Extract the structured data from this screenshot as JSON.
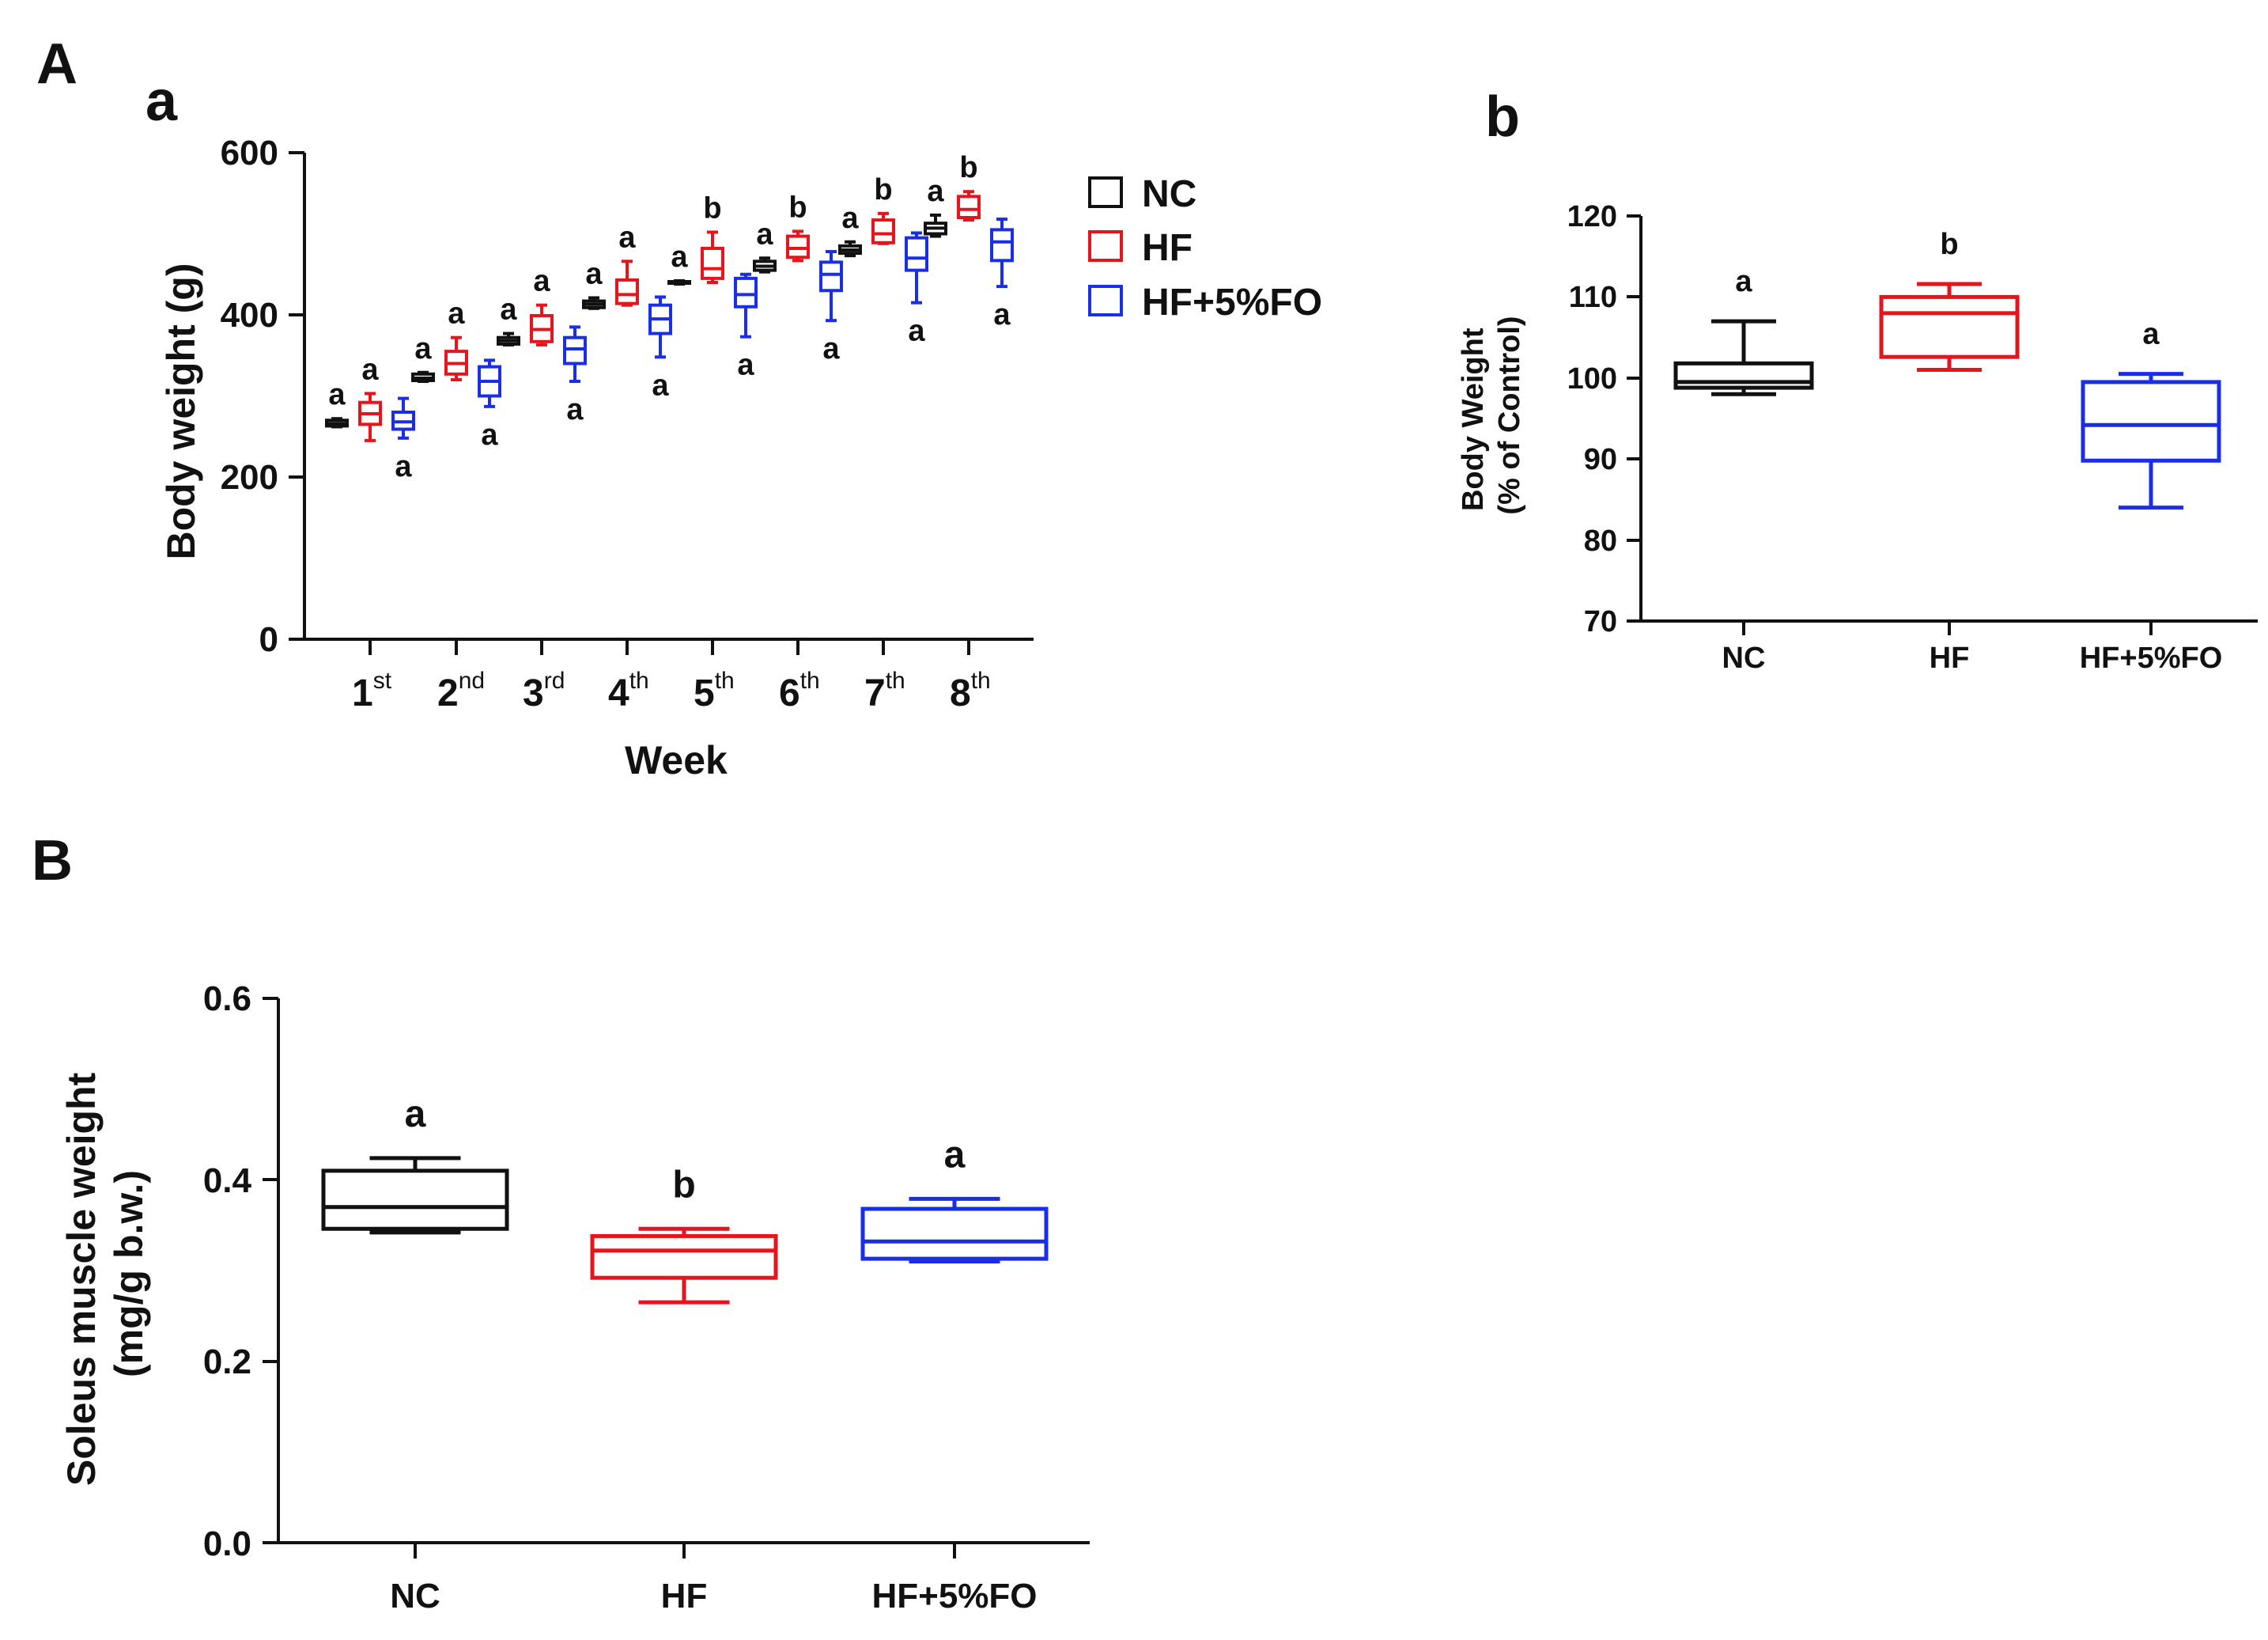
{
  "colors": {
    "NC": "#111111",
    "HF": "#e8141b",
    "HF+5%FO": "#1a2ee8"
  },
  "panel_labels": {
    "A": "A",
    "a": "a",
    "b": "b",
    "B": "B"
  },
  "chart_data": [
    {
      "id": "Aa",
      "type": "box",
      "title": "",
      "xlabel": "Week",
      "ylabel": "Body weight (g)",
      "ylim": [
        0,
        600
      ],
      "yticks": [
        "0",
        "200",
        "400",
        "600"
      ],
      "categories": [
        {
          "base": "1",
          "sup": "st"
        },
        {
          "base": "2",
          "sup": "nd"
        },
        {
          "base": "3",
          "sup": "rd"
        },
        {
          "base": "4",
          "sup": "th"
        },
        {
          "base": "5",
          "sup": "th"
        },
        {
          "base": "6",
          "sup": "th"
        },
        {
          "base": "7",
          "sup": "th"
        },
        {
          "base": "8",
          "sup": "th"
        }
      ],
      "legend": [
        "NC",
        "HF",
        "HF+5%FO"
      ],
      "series": [
        {
          "name": "NC",
          "boxes": [
            {
              "min": 262,
              "q1": 263,
              "median": 266,
              "q3": 270,
              "max": 272
            },
            {
              "min": 318,
              "q1": 319,
              "median": 322,
              "q3": 327,
              "max": 329
            },
            {
              "min": 363,
              "q1": 364,
              "median": 368,
              "q3": 372,
              "max": 377
            },
            {
              "min": 408,
              "q1": 409,
              "median": 413,
              "q3": 417,
              "max": 421
            },
            {
              "min": 438,
              "q1": 439,
              "median": 440,
              "q3": 441,
              "max": 442
            },
            {
              "min": 453,
              "q1": 455,
              "median": 460,
              "q3": 466,
              "max": 470
            },
            {
              "min": 473,
              "q1": 476,
              "median": 480,
              "q3": 485,
              "max": 490
            },
            {
              "min": 497,
              "q1": 500,
              "median": 507,
              "q3": 513,
              "max": 523
            }
          ]
        },
        {
          "name": "HF",
          "boxes": [
            {
              "min": 245,
              "q1": 265,
              "median": 278,
              "q3": 292,
              "max": 303
            },
            {
              "min": 320,
              "q1": 327,
              "median": 340,
              "q3": 355,
              "max": 372
            },
            {
              "min": 363,
              "q1": 367,
              "median": 382,
              "q3": 399,
              "max": 412
            },
            {
              "min": 412,
              "q1": 414,
              "median": 425,
              "q3": 443,
              "max": 466
            },
            {
              "min": 440,
              "q1": 445,
              "median": 457,
              "q3": 482,
              "max": 502
            },
            {
              "min": 467,
              "q1": 471,
              "median": 482,
              "q3": 497,
              "max": 503
            },
            {
              "min": 488,
              "q1": 489,
              "median": 500,
              "q3": 517,
              "max": 525
            },
            {
              "min": 517,
              "q1": 520,
              "median": 530,
              "q3": 546,
              "max": 552
            }
          ]
        },
        {
          "name": "HF+5%FO",
          "boxes": [
            {
              "min": 248,
              "q1": 259,
              "median": 268,
              "q3": 280,
              "max": 297
            },
            {
              "min": 287,
              "q1": 300,
              "median": 318,
              "q3": 336,
              "max": 344
            },
            {
              "min": 318,
              "q1": 340,
              "median": 358,
              "q3": 372,
              "max": 385
            },
            {
              "min": 348,
              "q1": 377,
              "median": 395,
              "q3": 412,
              "max": 422
            },
            {
              "min": 373,
              "q1": 410,
              "median": 425,
              "q3": 445,
              "max": 450
            },
            {
              "min": 393,
              "q1": 430,
              "median": 450,
              "q3": 465,
              "max": 478
            },
            {
              "min": 415,
              "q1": 455,
              "median": 470,
              "q3": 495,
              "max": 501
            },
            {
              "min": 435,
              "q1": 467,
              "median": 490,
              "q3": 505,
              "max": 518
            }
          ]
        }
      ],
      "significance": {
        "NC": [
          "a",
          "a",
          "a",
          "a",
          "a",
          "a",
          "a",
          "a"
        ],
        "HF": [
          "a",
          "a",
          "a",
          "a",
          "b",
          "b",
          "b",
          "b"
        ],
        "HF+5%FO": [
          "a",
          "a",
          "a",
          "a",
          "a",
          "a",
          "a",
          "a"
        ]
      }
    },
    {
      "id": "Ab",
      "type": "box",
      "title": "",
      "xlabel": "",
      "ylabel": [
        "Body Weight",
        "(% of Control)"
      ],
      "ylim": [
        70,
        120
      ],
      "yticks": [
        "70",
        "80",
        "90",
        "100",
        "110",
        "120"
      ],
      "categories": [
        "NC",
        "HF",
        "HF+5%FO"
      ],
      "series": [
        {
          "name": "NC",
          "box": {
            "min": 98,
            "q1": 98.8,
            "median": 99.5,
            "q3": 101.8,
            "max": 107
          }
        },
        {
          "name": "HF",
          "box": {
            "min": 101,
            "q1": 102.6,
            "median": 108,
            "q3": 110,
            "max": 111.6
          }
        },
        {
          "name": "HF+5%FO",
          "box": {
            "min": 84,
            "q1": 89.8,
            "median": 94.2,
            "q3": 99.5,
            "max": 100.5
          }
        }
      ],
      "significance": [
        "a",
        "b",
        "a"
      ]
    },
    {
      "id": "B",
      "type": "box",
      "title": "",
      "xlabel": "",
      "ylabel": [
        "Soleus muscle weight",
        "(mg/g b.w.)"
      ],
      "ylim": [
        0,
        0.6
      ],
      "yticks": [
        "0.0",
        "0.2",
        "0.4",
        "0.6"
      ],
      "categories": [
        "NC",
        "HF",
        "HF+5%FO"
      ],
      "series": [
        {
          "name": "NC",
          "box": {
            "min": 0.342,
            "q1": 0.346,
            "median": 0.37,
            "q3": 0.41,
            "max": 0.424
          }
        },
        {
          "name": "HF",
          "box": {
            "min": 0.265,
            "q1": 0.292,
            "median": 0.322,
            "q3": 0.338,
            "max": 0.346
          }
        },
        {
          "name": "HF+5%FO",
          "box": {
            "min": 0.31,
            "q1": 0.313,
            "median": 0.332,
            "q3": 0.368,
            "max": 0.379
          }
        }
      ],
      "significance": [
        "a",
        "b",
        "a"
      ]
    }
  ]
}
